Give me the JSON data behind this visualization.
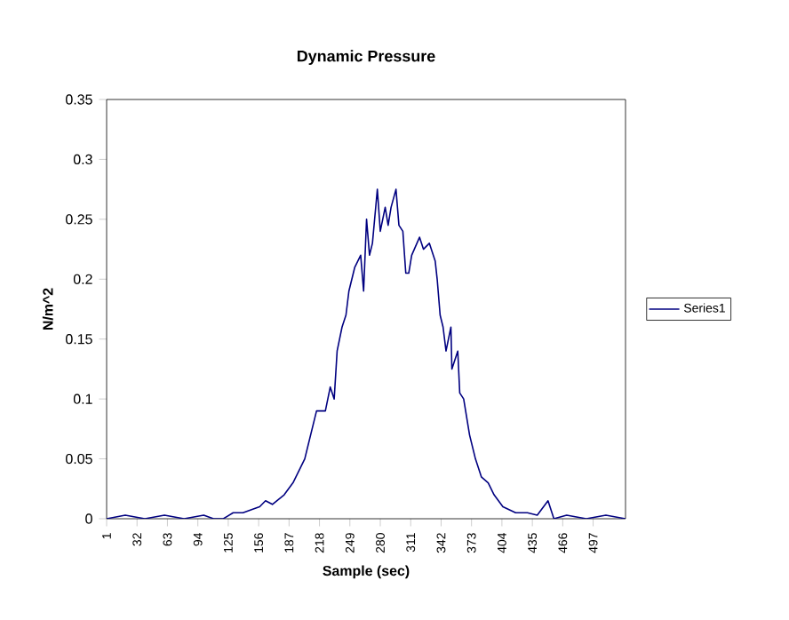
{
  "chart_data": {
    "type": "line",
    "title": "Dynamic Pressure",
    "xlabel": "Sample (sec)",
    "ylabel": "N/m^2",
    "x": [
      1,
      20,
      40,
      60,
      80,
      100,
      110,
      120,
      130,
      140,
      150,
      157,
      163,
      170,
      182,
      191,
      197,
      203,
      209,
      215,
      224,
      229,
      233,
      236,
      241,
      245,
      248,
      254,
      260,
      263,
      266,
      269,
      272,
      277,
      280,
      285,
      288,
      291,
      296,
      299,
      303,
      306,
      309,
      312,
      320,
      324,
      330,
      336,
      338,
      341,
      344,
      347,
      352,
      353,
      359,
      361,
      365,
      371,
      377,
      383,
      390,
      396,
      405,
      418,
      430,
      440,
      451,
      457,
      470,
      490,
      510,
      530
    ],
    "series": [
      {
        "name": "Series1",
        "color": "#000080",
        "values": [
          0,
          0.003,
          0,
          0.003,
          0,
          0.003,
          0,
          0,
          0.005,
          0.005,
          0.008,
          0.01,
          0.015,
          0.012,
          0.02,
          0.03,
          0.04,
          0.05,
          0.07,
          0.09,
          0.09,
          0.11,
          0.1,
          0.14,
          0.16,
          0.17,
          0.19,
          0.21,
          0.22,
          0.19,
          0.25,
          0.22,
          0.23,
          0.275,
          0.24,
          0.26,
          0.245,
          0.26,
          0.275,
          0.245,
          0.24,
          0.205,
          0.205,
          0.22,
          0.235,
          0.225,
          0.23,
          0.215,
          0.2,
          0.17,
          0.16,
          0.14,
          0.16,
          0.125,
          0.14,
          0.105,
          0.1,
          0.07,
          0.05,
          0.035,
          0.03,
          0.02,
          0.01,
          0.005,
          0.005,
          0.003,
          0.015,
          0,
          0.003,
          0,
          0.003,
          0
        ]
      }
    ],
    "xlim": [
      1,
      530
    ],
    "xticks": [
      1,
      32,
      63,
      94,
      125,
      156,
      187,
      218,
      249,
      280,
      311,
      342,
      373,
      404,
      435,
      466,
      497
    ],
    "ylim": [
      0,
      0.35
    ],
    "yticks": [
      0,
      0.05,
      0.1,
      0.15,
      0.2,
      0.25,
      0.3,
      0.35
    ],
    "grid": false,
    "legend": "right",
    "marker": "none",
    "line_style": "solid"
  }
}
